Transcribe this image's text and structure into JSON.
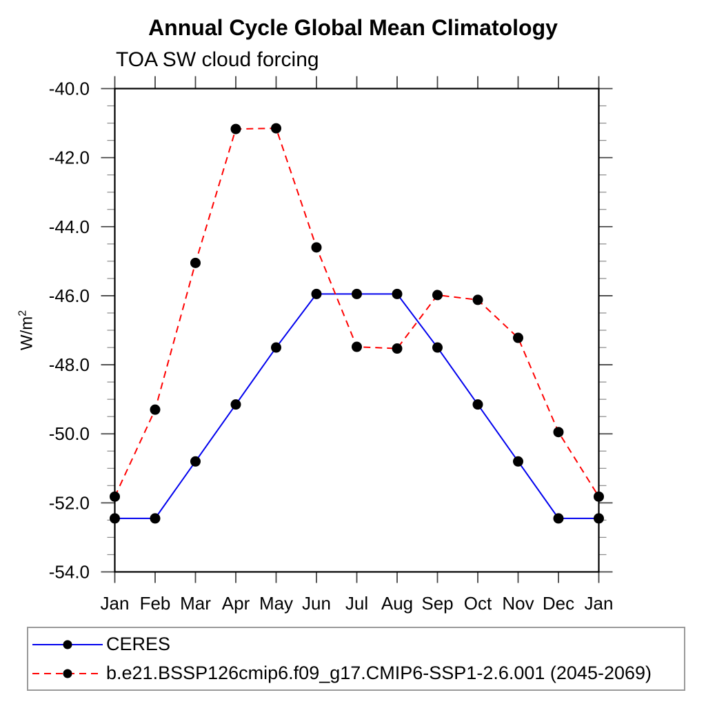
{
  "chart_data": {
    "type": "line",
    "title": "Annual Cycle Global Mean Climatology",
    "subtitle": "TOA SW cloud forcing",
    "ylabel_base": "W/m",
    "ylabel_sup": "2",
    "categories": [
      "Jan",
      "Feb",
      "Mar",
      "Apr",
      "May",
      "Jun",
      "Jul",
      "Aug",
      "Sep",
      "Oct",
      "Nov",
      "Dec",
      "Jan"
    ],
    "ylim": [
      -54.0,
      -40.0
    ],
    "ytick_values": [
      -40.0,
      -42.0,
      -44.0,
      -46.0,
      -48.0,
      -50.0,
      -52.0,
      -54.0
    ],
    "ytick_labels": [
      "-40.0",
      "-42.0",
      "-44.0",
      "-46.0",
      "-48.0",
      "-50.0",
      "-52.0",
      "-54.0"
    ],
    "minor_tick_step": 0.5,
    "grid": false,
    "legend_position": "bottom-left",
    "marker": {
      "shape": "circle",
      "color": "#000000"
    },
    "axis_color": "#000000",
    "series": [
      {
        "name": "CERES",
        "color": "#0000ee",
        "line_style": "solid",
        "values": [
          -52.45,
          -52.45,
          -50.8,
          -49.15,
          -47.5,
          -45.95,
          -45.95,
          -45.95,
          -47.5,
          -49.15,
          -50.8,
          -52.45,
          -52.45
        ]
      },
      {
        "name": "b.e21.BSSP126cmip6.f09_g17.CMIP6-SSP1-2.6.001 (2045-2069)",
        "color": "#ff0000",
        "line_style": "dashed",
        "values": [
          -51.82,
          -49.3,
          -45.05,
          -41.17,
          -41.15,
          -44.6,
          -47.48,
          -47.53,
          -45.98,
          -46.12,
          -47.22,
          -49.95,
          -51.82
        ]
      }
    ]
  }
}
